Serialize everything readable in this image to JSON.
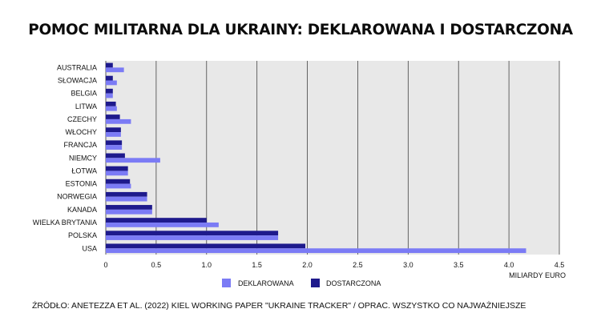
{
  "chart_data": {
    "type": "bar",
    "orientation": "horizontal",
    "title": "POMOC MILITARNA DLA UKRAINY: DEKLAROWANA I DOSTARCZONA",
    "xlabel": "MILIARDY EURO",
    "ylabel": "",
    "xlim": [
      0,
      4.5
    ],
    "xticks": [
      0,
      0.5,
      1.0,
      1.5,
      2.0,
      2.5,
      3.0,
      3.5,
      4.0,
      4.5
    ],
    "xtick_labels": [
      "0",
      "0.5",
      "1.0",
      "1.5",
      "2.0",
      "2.5",
      "3.0",
      "3.5",
      "4.0",
      "4.5"
    ],
    "grid": "vertical",
    "legend_position": "bottom-center",
    "categories": [
      "AUSTRALIA",
      "SŁOWACJA",
      "BELGIA",
      "LITWA",
      "CZECHY",
      "WŁOCHY",
      "FRANCJA",
      "NIEMCY",
      "ŁOTWA",
      "ESTONIA",
      "NORWEGIA",
      "KANADA",
      "WIELKA BRYTANIA",
      "POLSKA",
      "USA"
    ],
    "series": [
      {
        "name": "DEKLAROWANA",
        "color": "#7b7bf5",
        "values": [
          0.18,
          0.11,
          0.07,
          0.11,
          0.25,
          0.15,
          0.16,
          0.54,
          0.22,
          0.25,
          0.41,
          0.46,
          1.12,
          1.71,
          4.17
        ]
      },
      {
        "name": "DOSTARCZONA",
        "color": "#1e1a8c",
        "values": [
          0.07,
          0.07,
          0.07,
          0.1,
          0.14,
          0.15,
          0.16,
          0.19,
          0.22,
          0.24,
          0.41,
          0.46,
          1.0,
          1.71,
          1.98
        ]
      }
    ]
  },
  "source": "ŹRÓDŁO: ANETEZZA ET AL. (2022) KIEL WORKING PAPER \"UKRAINE TRACKER\" / OPRAC. WSZYSTKO CO NAJWAŻNIEJSZE",
  "colors": {
    "plot_background": "#e8e8e8",
    "grid": "#444444"
  }
}
